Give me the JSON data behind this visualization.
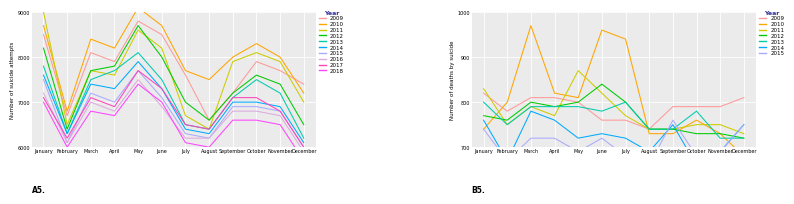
{
  "months": [
    "January",
    "February",
    "March",
    "April",
    "May",
    "June",
    "July",
    "August",
    "September",
    "October",
    "November",
    "December"
  ],
  "left_ylabel": "Number of suicide attempts",
  "left_label": "A5.",
  "right_ylabel": "Number of deaths by suicide",
  "right_label": "B5.",
  "left_ylim": [
    6000,
    9000
  ],
  "right_ylim": [
    700,
    1000
  ],
  "left_yticks": [
    6000,
    7000,
    8000,
    9000
  ],
  "right_yticks": [
    700,
    800,
    900,
    1000
  ],
  "left_years": [
    "2009",
    "2010",
    "2011",
    "2012",
    "2013",
    "2014",
    "2015",
    "2016",
    "2017",
    "2018"
  ],
  "right_years": [
    "2009",
    "2010",
    "2011",
    "2012",
    "2013",
    "2014",
    "2015"
  ],
  "year_colors": {
    "2009": "#FF9999",
    "2010": "#FFA500",
    "2011": "#CCCC00",
    "2012": "#00CC00",
    "2013": "#00CCAA",
    "2014": "#00AAFF",
    "2015": "#AAAAFF",
    "2016": "#DDAADD",
    "2017": "#FF44BB",
    "2018": "#FF44FF"
  },
  "left_data": {
    "2009": [
      8500,
      6700,
      8100,
      7900,
      8800,
      8500,
      7600,
      6600,
      7200,
      7900,
      7700,
      7400
    ],
    "2010": [
      8700,
      6800,
      8400,
      8200,
      9100,
      8700,
      7700,
      7500,
      8000,
      8300,
      8000,
      7200
    ],
    "2011": [
      9000,
      6500,
      7700,
      7600,
      8600,
      8200,
      6700,
      6400,
      7900,
      8100,
      7900,
      7000
    ],
    "2012": [
      8200,
      6400,
      7700,
      7800,
      8700,
      8000,
      7000,
      6600,
      7200,
      7600,
      7400,
      6500
    ],
    "2013": [
      7800,
      6300,
      7500,
      7700,
      8100,
      7500,
      6500,
      6400,
      7100,
      7500,
      7200,
      6200
    ],
    "2014": [
      7600,
      6300,
      7400,
      7300,
      7900,
      7300,
      6400,
      6300,
      7000,
      7000,
      6900,
      6100
    ],
    "2015": [
      7500,
      6100,
      7200,
      7000,
      7700,
      7100,
      6300,
      6200,
      6900,
      6900,
      6800,
      6000
    ],
    "2016": [
      7200,
      6100,
      7000,
      6800,
      7500,
      6900,
      6200,
      6200,
      6800,
      6800,
      6700,
      5900
    ],
    "2017": [
      7100,
      6200,
      7100,
      6900,
      7700,
      7300,
      6500,
      6400,
      7100,
      7100,
      6800,
      6000
    ],
    "2018": [
      7000,
      6000,
      6800,
      6700,
      7400,
      7000,
      6100,
      6000,
      6600,
      6600,
      6500,
      5700
    ]
  },
  "right_data": {
    "2009": [
      820,
      780,
      810,
      810,
      800,
      760,
      760,
      740,
      790,
      790,
      790,
      810
    ],
    "2010": [
      740,
      800,
      970,
      820,
      810,
      960,
      940,
      730,
      730,
      760,
      730,
      680
    ],
    "2011": [
      830,
      750,
      790,
      770,
      870,
      820,
      770,
      740,
      740,
      750,
      750,
      730
    ],
    "2012": [
      770,
      760,
      800,
      790,
      800,
      840,
      800,
      740,
      740,
      730,
      730,
      720
    ],
    "2013": [
      800,
      750,
      790,
      790,
      790,
      780,
      800,
      740,
      740,
      780,
      720,
      720
    ],
    "2014": [
      760,
      670,
      780,
      760,
      720,
      730,
      720,
      690,
      750,
      660,
      690,
      750
    ],
    "2015": [
      740,
      670,
      720,
      720,
      690,
      720,
      680,
      660,
      760,
      680,
      690,
      750
    ]
  },
  "bg_color": "#EBEBEB",
  "grid_color": "#FFFFFF",
  "fig_bg_color": "#FFFFFF",
  "legend_title_color": "#333399",
  "tick_fontsize": 3.5,
  "ylabel_fontsize": 4,
  "legend_fontsize": 4,
  "legend_title_fontsize": 4.5,
  "label_fontsize": 5.5,
  "linewidth": 0.75
}
